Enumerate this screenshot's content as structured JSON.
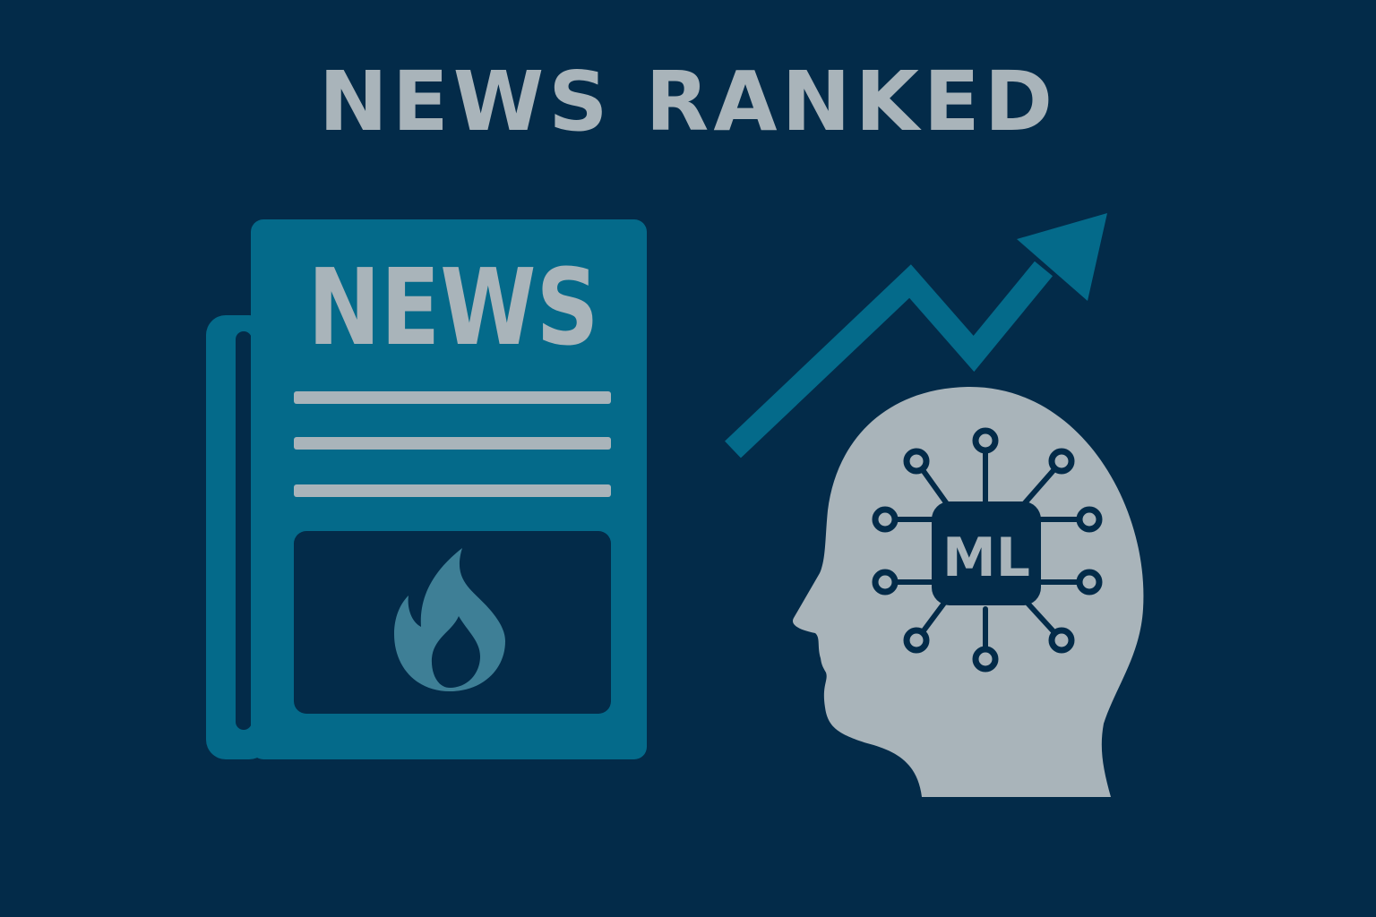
{
  "title": "NEWS RANKED",
  "newspaper": {
    "masthead": "NEWS",
    "icon": "flame-icon"
  },
  "trend": {
    "icon": "trend-up-arrow-icon"
  },
  "head": {
    "icon": "head-profile-icon",
    "chip_label": "ML"
  },
  "colors": {
    "background": "#032b49",
    "accent_teal": "#046a8a",
    "light_gray": "#a9b4ba",
    "flame": "#3e7f96"
  }
}
